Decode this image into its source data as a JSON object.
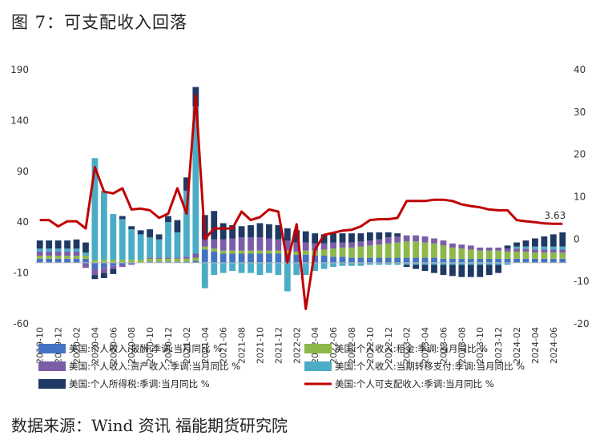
{
  "title": "图 7：可支配收入回落",
  "footer": "数据来源：Wind 资讯  福能期货研究院",
  "chart_data": {
    "type": "bar",
    "stacked": true,
    "left_axis": {
      "min": -60,
      "max": 190,
      "ticks": [
        190,
        140,
        90,
        40,
        -10,
        -60
      ]
    },
    "right_axis": {
      "min": -20,
      "max": 40,
      "ticks": [
        40,
        30,
        20,
        10,
        0,
        -10,
        -20
      ]
    },
    "x_tick_labels": [
      "2019-10",
      "2019-12",
      "2020-02",
      "2020-04",
      "2020-06",
      "2020-08",
      "2020-10",
      "2020-12",
      "2021-02",
      "2021-04",
      "2021-06",
      "2021-08",
      "2021-10",
      "2021-12",
      "2022-02",
      "2022-04",
      "2022-06",
      "2022-08",
      "2022-10",
      "2022-12",
      "2023-02",
      "2023-04",
      "2023-06",
      "2023-08",
      "2023-10",
      "2023-12",
      "2024-02",
      "2024-04",
      "2024-06"
    ],
    "months": [
      "2019-10",
      "2019-11",
      "2019-12",
      "2020-01",
      "2020-02",
      "2020-03",
      "2020-04",
      "2020-05",
      "2020-06",
      "2020-07",
      "2020-08",
      "2020-09",
      "2020-10",
      "2020-11",
      "2020-12",
      "2021-01",
      "2021-02",
      "2021-03",
      "2021-04",
      "2021-05",
      "2021-06",
      "2021-07",
      "2021-08",
      "2021-09",
      "2021-10",
      "2021-11",
      "2021-12",
      "2022-01",
      "2022-02",
      "2022-03",
      "2022-04",
      "2022-05",
      "2022-06",
      "2022-07",
      "2022-08",
      "2022-09",
      "2022-10",
      "2022-11",
      "2022-12",
      "2023-01",
      "2023-02",
      "2023-03",
      "2023-04",
      "2023-05",
      "2023-06",
      "2023-07",
      "2023-08",
      "2023-09",
      "2023-10",
      "2023-11",
      "2023-12",
      "2024-01",
      "2024-02",
      "2024-03",
      "2024-04",
      "2024-05",
      "2024-06",
      "2024-07"
    ],
    "series": [
      {
        "name": "美国:个人收入:报酬:季调:当月同比 %",
        "color": "#4472C4",
        "axis": "left",
        "values": [
          4,
          4,
          4,
          4,
          4,
          4,
          -6,
          -5,
          -3,
          -2,
          -1,
          0,
          1,
          1,
          1,
          1,
          1,
          2,
          13,
          11,
          9,
          9,
          9,
          9,
          9,
          9,
          9,
          9,
          8,
          8,
          7,
          7,
          6,
          6,
          5,
          5,
          5,
          5,
          5,
          5,
          5,
          5,
          5,
          5,
          4,
          4,
          4,
          4,
          4,
          4,
          4,
          4,
          4,
          4,
          4,
          4,
          4,
          4
        ]
      },
      {
        "name": "美国:个人收入:租金:季调:当月同比 %",
        "color": "#8DB84A",
        "axis": "left",
        "values": [
          3,
          3,
          3,
          3,
          3,
          3,
          3,
          3,
          3,
          3,
          3,
          3,
          3,
          3,
          3,
          3,
          3,
          3,
          3,
          3,
          3,
          3,
          3,
          3,
          3,
          3,
          3,
          3,
          3,
          4,
          5,
          6,
          8,
          9,
          10,
          11,
          12,
          13,
          14,
          15,
          16,
          16,
          15,
          14,
          13,
          11,
          10,
          9,
          8,
          8,
          8,
          7,
          7,
          7,
          6,
          6,
          6,
          6
        ]
      },
      {
        "name": "美国:个人收入:资产收入:季调:当月同比 %",
        "color": "#7B5EA7",
        "axis": "left",
        "values": [
          4,
          4,
          4,
          4,
          4,
          -5,
          -6,
          -5,
          -3,
          -2,
          -1,
          0,
          1,
          1,
          1,
          1,
          2,
          4,
          7,
          9,
          11,
          12,
          13,
          13,
          13,
          12,
          11,
          10,
          9,
          8,
          7,
          6,
          6,
          5,
          5,
          5,
          5,
          5,
          6,
          6,
          6,
          6,
          6,
          5,
          5,
          4,
          4,
          4,
          3,
          3,
          3,
          3,
          3,
          3,
          3,
          3,
          3,
          3
        ]
      },
      {
        "name": "美国:个人收入:当期转移支付:季调:当月同比 %",
        "color": "#4BACC6",
        "axis": "left",
        "values": [
          3,
          3,
          3,
          3,
          3,
          3,
          100,
          68,
          45,
          40,
          30,
          25,
          20,
          18,
          35,
          25,
          65,
          145,
          -25,
          -12,
          -10,
          -8,
          -10,
          -10,
          -12,
          -10,
          -12,
          -28,
          -12,
          -12,
          -8,
          -6,
          -4,
          -3,
          -3,
          -3,
          -2,
          -2,
          -2,
          -2,
          -2,
          -2,
          -2,
          -2,
          -2,
          -2,
          -2,
          -2,
          -2,
          -2,
          -2,
          -2,
          2,
          2,
          3,
          3,
          3,
          3
        ]
      },
      {
        "name": "美国:个人所得税:季调:当月同比 %",
        "color": "#1F3864",
        "axis": "left",
        "values": [
          8,
          8,
          8,
          8,
          9,
          10,
          -4,
          -5,
          -5,
          3,
          3,
          4,
          8,
          5,
          6,
          12,
          13,
          19,
          24,
          28,
          16,
          13,
          11,
          12,
          14,
          14,
          14,
          12,
          12,
          11,
          10,
          9,
          9,
          9,
          9,
          8,
          8,
          7,
          5,
          3,
          -2,
          -4,
          -6,
          -8,
          -10,
          -11,
          -12,
          -12,
          -12,
          -10,
          -8,
          3,
          4,
          6,
          8,
          10,
          12,
          14
        ]
      },
      {
        "name": "美国:个人可支配收入:季调:当月同比 %",
        "color": "#C00000",
        "axis": "right",
        "type": "line",
        "values": [
          4.5,
          4.5,
          3.0,
          4.2,
          4.2,
          2.5,
          17.0,
          11.2,
          10.8,
          12.0,
          7.0,
          7.2,
          6.8,
          5.0,
          6.0,
          12.0,
          6.0,
          34.0,
          0,
          2.5,
          2.5,
          2.5,
          6.5,
          4.5,
          5.2,
          7.0,
          6.5,
          -5.5,
          3.5,
          -16.5,
          -2.5,
          1.0,
          1.5,
          2.0,
          2.2,
          3.0,
          4.5,
          4.7,
          4.7,
          5.0,
          9.0,
          9.0,
          9.0,
          9.3,
          9.3,
          9.0,
          8.2,
          7.8,
          7.5,
          7.0,
          6.8,
          6.8,
          4.5,
          4.2,
          4.0,
          3.7,
          3.6,
          3.63
        ]
      }
    ],
    "annotation": "3.63"
  }
}
